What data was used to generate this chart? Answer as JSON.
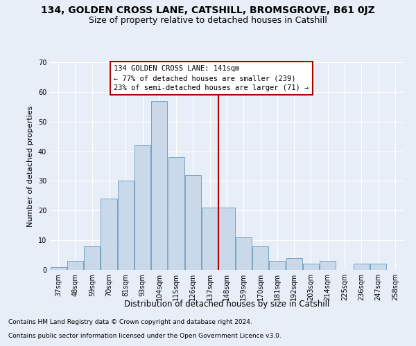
{
  "title": "134, GOLDEN CROSS LANE, CATSHILL, BROMSGROVE, B61 0JZ",
  "subtitle": "Size of property relative to detached houses in Catshill",
  "xlabel": "Distribution of detached houses by size in Catshill",
  "ylabel": "Number of detached properties",
  "bar_labels": [
    "37sqm",
    "48sqm",
    "59sqm",
    "70sqm",
    "81sqm",
    "93sqm",
    "104sqm",
    "115sqm",
    "126sqm",
    "137sqm",
    "148sqm",
    "159sqm",
    "170sqm",
    "181sqm",
    "192sqm",
    "203sqm",
    "214sqm",
    "225sqm",
    "236sqm",
    "247sqm",
    "258sqm"
  ],
  "bar_heights": [
    1,
    3,
    8,
    24,
    30,
    42,
    57,
    38,
    32,
    21,
    21,
    11,
    8,
    3,
    4,
    2,
    3,
    0,
    2,
    2,
    0
  ],
  "bar_color": "#c9d9ea",
  "bar_edge_color": "#6699bb",
  "vline_x_index": 9,
  "vline_color": "#aa0000",
  "ylim": [
    0,
    70
  ],
  "yticks": [
    0,
    10,
    20,
    30,
    40,
    50,
    60,
    70
  ],
  "annotation_title": "134 GOLDEN CROSS LANE: 141sqm",
  "annotation_line1": "← 77% of detached houses are smaller (239)",
  "annotation_line2": "23% of semi-detached houses are larger (71) →",
  "annotation_box_color": "#ffffff",
  "annotation_box_edge": "#aa0000",
  "footer1": "Contains HM Land Registry data © Crown copyright and database right 2024.",
  "footer2": "Contains public sector information licensed under the Open Government Licence v3.0.",
  "bg_color": "#e8eef8",
  "plot_bg_color": "#e8eef8",
  "grid_color": "#ffffff",
  "title_fontsize": 10,
  "subtitle_fontsize": 9,
  "xlabel_fontsize": 8.5,
  "ylabel_fontsize": 8,
  "tick_fontsize": 7,
  "annotation_fontsize": 7.5,
  "footer_fontsize": 6.5
}
